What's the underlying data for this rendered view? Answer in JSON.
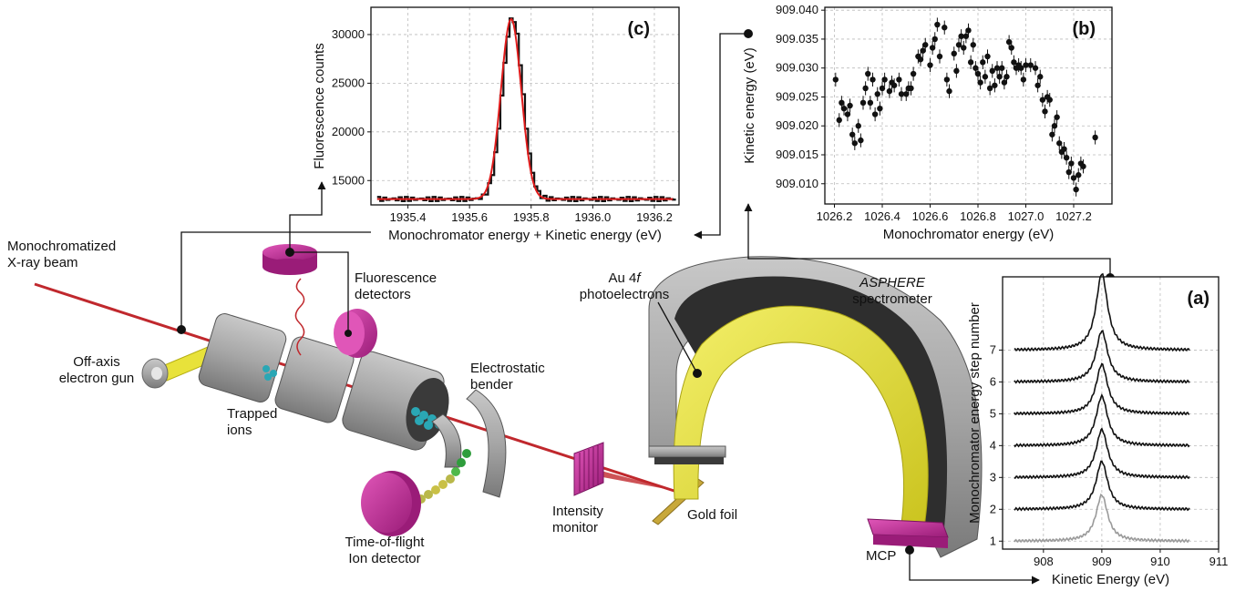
{
  "labels": {
    "beam": [
      "Monochromatized",
      "X-ray beam"
    ],
    "fluorescence_detectors": [
      "Fluorescence",
      "detectors"
    ],
    "electron_gun": [
      "Off-axis",
      "electron gun"
    ],
    "trapped_ions": [
      "Trapped",
      "ions"
    ],
    "bender": [
      "Electrostatic",
      "bender"
    ],
    "tof_detector": [
      "Time-of-flight",
      "Ion detector"
    ],
    "intensity_monitor": [
      "Intensity",
      "monitor"
    ],
    "gold_foil": "Gold foil",
    "au4f_prefix": "Au 4",
    "au4f_italic": "f",
    "au4f_line2": "photoelectrons",
    "spectrometer_name": "ASPHERE",
    "spectrometer_word": "spectrometer",
    "mcp": "MCP"
  },
  "colors": {
    "beam": "#c0282d",
    "magenta": "#c62a9e",
    "yellow": "#e8e23a",
    "grey": "#9a9a9a",
    "dark": "#303030"
  },
  "chart_data": [
    {
      "id": "c",
      "type": "line",
      "panel_label": "(c)",
      "xlabel": "Monochromator energy + Kinetic energy (eV)",
      "ylabel": "Fluorescence counts",
      "xlim": [
        1935.28,
        1936.28
      ],
      "ylim": [
        12500,
        32800
      ],
      "xticks": [
        1935.4,
        1935.6,
        1935.8,
        1936.0,
        1936.2
      ],
      "xtick_labels": [
        "1935.4",
        "1935.6",
        "1935.8",
        "1936.0",
        "1936.2"
      ],
      "yticks": [
        15000,
        20000,
        25000,
        30000
      ],
      "ytick_labels": [
        "15000",
        "20000",
        "25000",
        "30000"
      ],
      "grid": true,
      "series": [
        {
          "style": "step",
          "color": "#111111",
          "peak": {
            "center": 1935.735,
            "sigma": 0.033,
            "amplitude": 18600,
            "baseline": 13100
          }
        },
        {
          "style": "fit",
          "color": "#e01b1b",
          "peak": {
            "center": 1935.735,
            "sigma": 0.033,
            "amplitude": 18500,
            "baseline": 13100
          }
        }
      ]
    },
    {
      "id": "b",
      "type": "scatter",
      "panel_label": "(b)",
      "xlabel": "Monochromator energy (eV)",
      "ylabel": "Kinetic energy (eV)",
      "xlim": [
        1026.16,
        1027.36
      ],
      "ylim": [
        909.0065,
        909.0405
      ],
      "xticks": [
        1026.2,
        1026.4,
        1026.6,
        1026.8,
        1027.0,
        1027.2
      ],
      "xtick_labels": [
        "1026.2",
        "1026.4",
        "1026.6",
        "1026.8",
        "1027.0",
        "1027.2"
      ],
      "yticks": [
        909.01,
        909.015,
        909.02,
        909.025,
        909.03,
        909.035,
        909.04
      ],
      "ytick_labels": [
        "909.010",
        "909.015",
        "909.020",
        "909.025",
        "909.030",
        "909.035",
        "909.040"
      ],
      "grid": true,
      "error_bar": 0.0012,
      "points": [
        [
          1026.205,
          909.028
        ],
        [
          1026.22,
          909.021
        ],
        [
          1026.23,
          909.024
        ],
        [
          1026.24,
          909.023
        ],
        [
          1026.255,
          909.022
        ],
        [
          1026.265,
          909.0235
        ],
        [
          1026.275,
          909.0185
        ],
        [
          1026.285,
          909.017
        ],
        [
          1026.3,
          909.02
        ],
        [
          1026.31,
          909.0175
        ],
        [
          1026.32,
          909.024
        ],
        [
          1026.33,
          909.0265
        ],
        [
          1026.34,
          909.029
        ],
        [
          1026.35,
          909.024
        ],
        [
          1026.36,
          909.028
        ],
        [
          1026.37,
          909.022
        ],
        [
          1026.38,
          909.0255
        ],
        [
          1026.39,
          909.023
        ],
        [
          1026.4,
          909.0265
        ],
        [
          1026.41,
          909.028
        ],
        [
          1026.43,
          909.026
        ],
        [
          1026.44,
          909.0275
        ],
        [
          1026.45,
          909.027
        ],
        [
          1026.47,
          909.028
        ],
        [
          1026.48,
          909.0255
        ],
        [
          1026.5,
          909.0255
        ],
        [
          1026.51,
          909.0265
        ],
        [
          1026.52,
          909.0265
        ],
        [
          1026.53,
          909.029
        ],
        [
          1026.55,
          909.032
        ],
        [
          1026.56,
          909.0315
        ],
        [
          1026.57,
          909.033
        ],
        [
          1026.58,
          909.034
        ],
        [
          1026.6,
          909.0305
        ],
        [
          1026.61,
          909.0335
        ],
        [
          1026.62,
          909.035
        ],
        [
          1026.63,
          909.0375
        ],
        [
          1026.64,
          909.032
        ],
        [
          1026.66,
          909.037
        ],
        [
          1026.67,
          909.028
        ],
        [
          1026.68,
          909.026
        ],
        [
          1026.7,
          909.0325
        ],
        [
          1026.71,
          909.0295
        ],
        [
          1026.72,
          909.034
        ],
        [
          1026.73,
          909.0355
        ],
        [
          1026.74,
          909.0335
        ],
        [
          1026.75,
          909.0355
        ],
        [
          1026.76,
          909.0365
        ],
        [
          1026.77,
          909.031
        ],
        [
          1026.78,
          909.034
        ],
        [
          1026.79,
          909.03
        ],
        [
          1026.8,
          909.029
        ],
        [
          1026.81,
          909.0275
        ],
        [
          1026.82,
          909.031
        ],
        [
          1026.83,
          909.0285
        ],
        [
          1026.84,
          909.032
        ],
        [
          1026.85,
          909.0265
        ],
        [
          1026.86,
          909.0295
        ],
        [
          1026.87,
          909.027
        ],
        [
          1026.88,
          909.03
        ],
        [
          1026.89,
          909.0285
        ],
        [
          1026.9,
          909.03
        ],
        [
          1026.91,
          909.0275
        ],
        [
          1026.92,
          909.0285
        ],
        [
          1026.93,
          909.0345
        ],
        [
          1026.94,
          909.0335
        ],
        [
          1026.95,
          909.031
        ],
        [
          1026.96,
          909.03
        ],
        [
          1026.97,
          909.0305
        ],
        [
          1026.98,
          909.03
        ],
        [
          1026.99,
          909.028
        ],
        [
          1027.0,
          909.0305
        ],
        [
          1027.02,
          909.0305
        ],
        [
          1027.04,
          909.03
        ],
        [
          1027.05,
          909.027
        ],
        [
          1027.06,
          909.0285
        ],
        [
          1027.07,
          909.0245
        ],
        [
          1027.08,
          909.0225
        ],
        [
          1027.09,
          909.025
        ],
        [
          1027.1,
          909.0245
        ],
        [
          1027.11,
          909.0185
        ],
        [
          1027.12,
          909.02
        ],
        [
          1027.13,
          909.0215
        ],
        [
          1027.14,
          909.017
        ],
        [
          1027.15,
          909.0155
        ],
        [
          1027.16,
          909.016
        ],
        [
          1027.17,
          909.0145
        ],
        [
          1027.18,
          909.012
        ],
        [
          1027.19,
          909.0135
        ],
        [
          1027.2,
          909.011
        ],
        [
          1027.21,
          909.009
        ],
        [
          1027.22,
          909.0115
        ],
        [
          1027.23,
          909.0135
        ],
        [
          1027.24,
          909.013
        ],
        [
          1027.29,
          909.018
        ]
      ]
    },
    {
      "id": "a",
      "type": "line",
      "panel_label": "(a)",
      "xlabel": "Kinetic Energy (eV)",
      "ylabel": "Monochromator energy step number",
      "xlim": [
        907.3,
        911.0
      ],
      "ylim": [
        0.75,
        9.3
      ],
      "xticks": [
        908,
        909,
        910,
        911
      ],
      "xtick_labels": [
        "908",
        "909",
        "910",
        "911"
      ],
      "yticks": [
        1,
        2,
        3,
        4,
        5,
        6,
        7
      ],
      "ytick_labels": [
        "1",
        "2",
        "3",
        "4",
        "5",
        "6",
        "7"
      ],
      "grid": true,
      "series": [
        {
          "step": 1,
          "color": "#9a9a9a",
          "peak": {
            "center": 909.0,
            "gamma": 0.12,
            "height": 1.45
          }
        },
        {
          "step": 2,
          "color": "#111111",
          "peak": {
            "center": 909.0,
            "gamma": 0.12,
            "height": 1.5
          }
        },
        {
          "step": 3,
          "color": "#111111",
          "peak": {
            "center": 909.0,
            "gamma": 0.12,
            "height": 1.5
          }
        },
        {
          "step": 4,
          "color": "#111111",
          "peak": {
            "center": 909.0,
            "gamma": 0.12,
            "height": 1.55
          }
        },
        {
          "step": 5,
          "color": "#111111",
          "peak": {
            "center": 909.0,
            "gamma": 0.12,
            "height": 1.55
          }
        },
        {
          "step": 6,
          "color": "#111111",
          "peak": {
            "center": 909.0,
            "gamma": 0.12,
            "height": 1.6
          }
        },
        {
          "step": 7,
          "color": "#111111",
          "peak": {
            "center": 909.0,
            "gamma": 0.12,
            "height": 2.4
          }
        }
      ]
    }
  ]
}
